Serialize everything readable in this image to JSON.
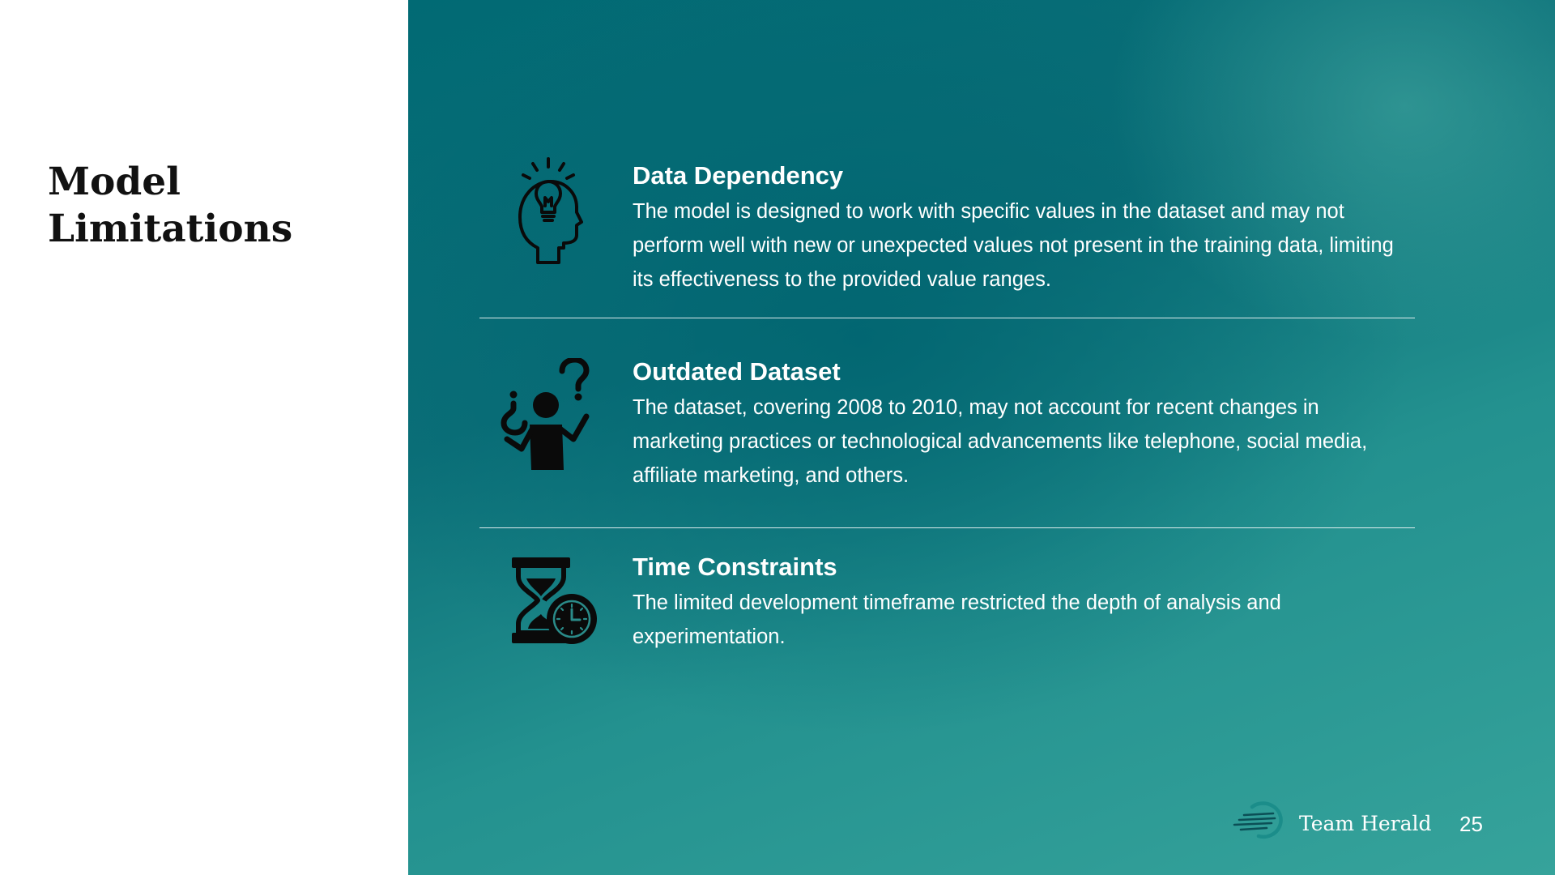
{
  "title": "Model\nLimitations",
  "items": [
    {
      "icon": "lightbulb-head-icon",
      "heading": "Data Dependency",
      "text": "The model is designed to work with specific values in the dataset and may not perform well with new or unexpected values not present in the training data, limiting its effectiveness to the provided value ranges."
    },
    {
      "icon": "confused-person-icon",
      "heading": "Outdated Dataset",
      "text": "The dataset, covering 2008 to 2010, may not account for recent changes in marketing practices or technological advancements like telephone, social media, affiliate marketing, and others."
    },
    {
      "icon": "hourglass-clock-icon",
      "heading": "Time Constraints",
      "text": "The limited development timeframe restricted the depth of analysis and experimentation."
    }
  ],
  "footer": {
    "logo_icon": "team-herald-logo-icon",
    "brand": "Team Herald",
    "page_number": "25"
  },
  "colors": {
    "accent_dark": "#016a74",
    "accent_light": "#36a39b",
    "text_on_accent": "#ffffff",
    "title_text": "#111111"
  }
}
